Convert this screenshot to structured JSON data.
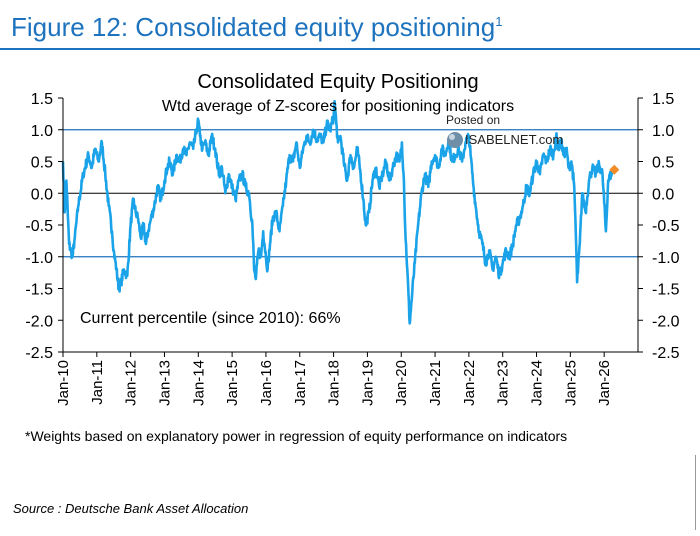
{
  "header": {
    "figure_title": "Figure 12: Consolidated equity positioning",
    "figure_title_sup": "1"
  },
  "watermark": {
    "line1": "Posted on",
    "line2": "ISABELNET.com"
  },
  "footnote": "*Weights based on explanatory power in regression of equity performance on indicators",
  "source": "Source : Deutsche Bank Asset Allocation",
  "colors": {
    "accent": "#1e73be",
    "series": "#1aa3e8",
    "marker": "#f28c28",
    "gridline": "#1e73be"
  },
  "chart_data": {
    "type": "line",
    "title": "Consolidated Equity Positioning",
    "subtitle": "Wtd average of Z-scores for positioning indicators",
    "annotation": "Current percentile (since 2010): 66%",
    "ylim": [
      -2.5,
      1.5
    ],
    "yticks": [
      1.5,
      1.0,
      0.5,
      0.0,
      -0.5,
      -1.0,
      -1.5,
      -2.0,
      -2.5
    ],
    "ytick_labels": [
      "1.5",
      "1.0",
      "0.5",
      "0.0",
      "-0.5",
      "-1.0",
      "-1.5",
      "-2.0",
      "-2.5"
    ],
    "reference_lines": [
      1.0,
      -1.0
    ],
    "xlim": [
      2010.0,
      2027.0
    ],
    "xticks": [
      2010,
      2011,
      2012,
      2013,
      2014,
      2015,
      2016,
      2017,
      2018,
      2019,
      2020,
      2021,
      2022,
      2023,
      2024,
      2025,
      2026
    ],
    "xtick_labels": [
      "Jan-10",
      "Jan-11",
      "Jan-12",
      "Jan-13",
      "Jan-14",
      "Jan-15",
      "Jan-16",
      "Jan-17",
      "Jan-18",
      "Jan-19",
      "Jan-20",
      "Jan-21",
      "Jan-22",
      "Jan-23",
      "Jan-24",
      "Jan-25",
      "Jan-26"
    ],
    "series": [
      {
        "x": [
          2010.0,
          2010.05,
          2010.1,
          2010.18,
          2010.28,
          2010.35,
          2010.45,
          2010.6,
          2010.75,
          2010.85,
          2010.95,
          2011.05,
          2011.15,
          2011.25,
          2011.35,
          2011.45,
          2011.5,
          2011.58,
          2011.65,
          2011.72,
          2011.8,
          2011.9,
          2012.0,
          2012.08,
          2012.15,
          2012.22,
          2012.3,
          2012.38,
          2012.45,
          2012.52,
          2012.6,
          2012.7,
          2012.8,
          2012.9,
          2013.0,
          2013.08,
          2013.15,
          2013.25,
          2013.35,
          2013.45,
          2013.55,
          2013.65,
          2013.75,
          2013.85,
          2013.95,
          2014.0,
          2014.05,
          2014.12,
          2014.2,
          2014.3,
          2014.4,
          2014.5,
          2014.55,
          2014.62,
          2014.7,
          2014.8,
          2014.9,
          2015.0,
          2015.1,
          2015.2,
          2015.3,
          2015.4,
          2015.5,
          2015.6,
          2015.65,
          2015.7,
          2015.78,
          2015.85,
          2015.92,
          2016.0,
          2016.05,
          2016.12,
          2016.2,
          2016.3,
          2016.4,
          2016.5,
          2016.6,
          2016.7,
          2016.8,
          2016.9,
          2017.0,
          2017.1,
          2017.2,
          2017.3,
          2017.4,
          2017.5,
          2017.6,
          2017.7,
          2017.8,
          2017.9,
          2018.0,
          2018.03,
          2018.08,
          2018.13,
          2018.2,
          2018.3,
          2018.4,
          2018.5,
          2018.6,
          2018.7,
          2018.8,
          2018.88,
          2018.95,
          2019.05,
          2019.15,
          2019.25,
          2019.35,
          2019.45,
          2019.55,
          2019.65,
          2019.75,
          2019.85,
          2019.95,
          2020.02,
          2020.08,
          2020.12,
          2020.18,
          2020.25,
          2020.32,
          2020.4,
          2020.5,
          2020.6,
          2020.7,
          2020.8,
          2020.9,
          2021.0,
          2021.1,
          2021.2,
          2021.3,
          2021.4,
          2021.5,
          2021.6,
          2021.7,
          2021.8,
          2021.9,
          2022.0,
          2022.05,
          2022.12,
          2022.2,
          2022.3,
          2022.4,
          2022.5,
          2022.6,
          2022.7,
          2022.8,
          2022.9,
          2023.0,
          2023.1,
          2023.2,
          2023.3,
          2023.4,
          2023.5,
          2023.6,
          2023.7,
          2023.8,
          2023.9,
          2024.0,
          2024.1,
          2024.2,
          2024.3,
          2024.4,
          2024.5,
          2024.58,
          2024.65,
          2024.72,
          2024.8,
          2024.88,
          2024.95,
          2025.03,
          2025.1,
          2025.15,
          2025.2,
          2025.28,
          2025.35,
          2025.45,
          2025.55,
          2025.65,
          2025.75,
          2025.85,
          2025.95,
          2026.05,
          2026.12,
          2026.2,
          2026.25
        ],
        "y": [
          0.5,
          -0.3,
          0.2,
          -0.8,
          -1.0,
          -0.7,
          -0.2,
          0.3,
          0.6,
          0.4,
          0.7,
          0.5,
          0.8,
          0.3,
          -0.2,
          -0.6,
          -0.9,
          -1.2,
          -1.5,
          -1.4,
          -1.2,
          -1.3,
          -0.5,
          -0.1,
          -0.3,
          -0.4,
          -0.7,
          -0.5,
          -0.8,
          -0.6,
          -0.4,
          -0.2,
          0.1,
          -0.1,
          0.2,
          0.4,
          0.5,
          0.3,
          0.6,
          0.5,
          0.7,
          0.6,
          0.8,
          0.7,
          1.0,
          1.15,
          0.9,
          0.7,
          0.8,
          0.6,
          0.9,
          0.7,
          0.5,
          0.3,
          0.4,
          0.0,
          0.3,
          0.1,
          -0.1,
          0.2,
          0.3,
          0.1,
          0.0,
          -0.5,
          -1.2,
          -1.35,
          -0.9,
          -1.0,
          -0.6,
          -1.0,
          -1.2,
          -0.8,
          -0.4,
          -0.3,
          -0.6,
          -0.2,
          0.2,
          0.6,
          0.5,
          0.8,
          0.4,
          0.7,
          0.9,
          0.8,
          1.0,
          0.85,
          0.9,
          0.8,
          1.1,
          1.0,
          1.2,
          1.45,
          1.1,
          0.8,
          0.9,
          0.5,
          0.2,
          0.6,
          0.4,
          0.7,
          0.3,
          -0.1,
          -0.5,
          -0.3,
          0.2,
          0.4,
          0.1,
          0.3,
          0.5,
          0.2,
          0.4,
          0.6,
          0.5,
          0.8,
          0.2,
          -0.6,
          -1.2,
          -2.05,
          -1.6,
          -1.1,
          -0.5,
          0.0,
          0.3,
          0.1,
          0.5,
          0.6,
          0.4,
          0.7,
          0.6,
          0.85,
          0.5,
          0.6,
          0.7,
          0.5,
          0.8,
          0.9,
          0.6,
          0.2,
          -0.2,
          -0.6,
          -0.8,
          -1.1,
          -0.9,
          -1.2,
          -1.0,
          -1.3,
          -1.1,
          -0.9,
          -1.0,
          -0.8,
          -0.5,
          -0.4,
          -0.2,
          0.1,
          0.0,
          0.3,
          0.5,
          0.3,
          0.6,
          0.5,
          0.7,
          0.6,
          0.9,
          0.7,
          0.85,
          0.6,
          0.7,
          0.4,
          0.5,
          0.2,
          -0.4,
          -1.4,
          -0.8,
          0.0,
          -0.3,
          0.2,
          0.4,
          0.3,
          0.45,
          0.3,
          -0.6,
          0.2,
          0.3,
          0.37
        ],
        "color": "#1aa3e8"
      }
    ],
    "current_point": {
      "x": 2026.3,
      "y": 0.37
    }
  }
}
